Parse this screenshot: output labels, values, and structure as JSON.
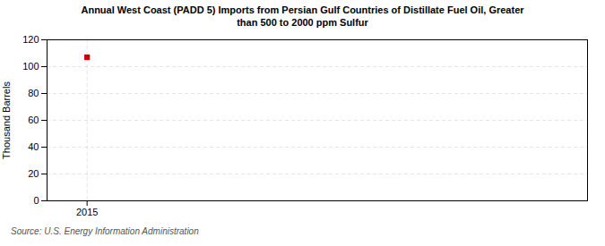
{
  "chart_data": {
    "type": "scatter",
    "title": "Annual West Coast (PADD 5) Imports from Persian Gulf Countries of Distillate Fuel Oil, Greater\nthan 500 to 2000 ppm Sulfur",
    "ylabel": "Thousand Barrels",
    "source": "Source: U.S. Energy Information Administration",
    "x": [
      2015
    ],
    "values": [
      107
    ],
    "color": "#cc0000",
    "marker": "square",
    "xlim": [
      2014.4,
      2022.5
    ],
    "xticks": [
      2015
    ],
    "ylim": [
      0,
      120
    ],
    "yticks": [
      0,
      20,
      40,
      60,
      80,
      100,
      120
    ],
    "grid": true
  }
}
